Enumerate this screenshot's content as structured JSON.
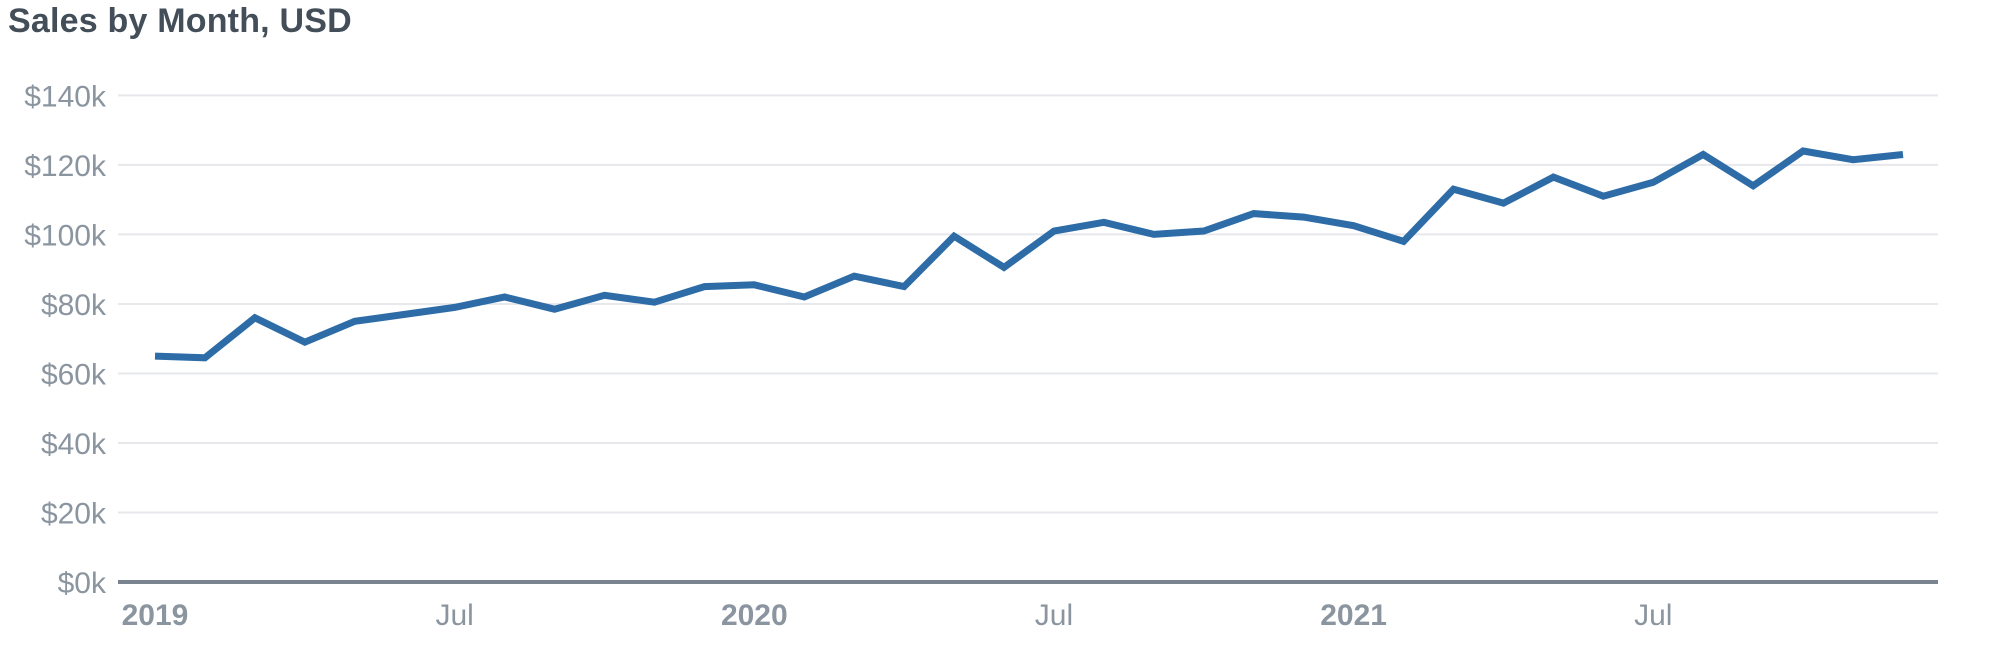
{
  "title": "Sales by Month, USD",
  "colors": {
    "line": "#2d6ca7",
    "title_text": "#434e59",
    "axis_text": "#8b95a0",
    "gridline": "#e6e8ec",
    "baseline": "#79848f",
    "background": "#ffffff"
  },
  "chart_data": {
    "type": "line",
    "title": "Sales by Month, USD",
    "ylabel": "USD",
    "xlabel": "",
    "ylim": [
      0,
      140
    ],
    "grid": "horizontal",
    "legend": "none",
    "unit": "USD thousands",
    "x": [
      "Jan 2019",
      "Feb 2019",
      "Mar 2019",
      "Apr 2019",
      "May 2019",
      "Jun 2019",
      "Jul 2019",
      "Aug 2019",
      "Sep 2019",
      "Oct 2019",
      "Nov 2019",
      "Dec 2019",
      "Jan 2020",
      "Feb 2020",
      "Mar 2020",
      "Apr 2020",
      "May 2020",
      "Jun 2020",
      "Jul 2020",
      "Aug 2020",
      "Sep 2020",
      "Oct 2020",
      "Nov 2020",
      "Dec 2020",
      "Jan 2021",
      "Feb 2021",
      "Mar 2021",
      "Apr 2021",
      "May 2021",
      "Jun 2021",
      "Jul 2021",
      "Aug 2021",
      "Sep 2021",
      "Oct 2021",
      "Nov 2021",
      "Dec 2021"
    ],
    "values": [
      65,
      64.5,
      76,
      69,
      75,
      77,
      79,
      82,
      78.5,
      82.5,
      80.5,
      85,
      85.5,
      82,
      88,
      85,
      99.5,
      90.5,
      101,
      103.5,
      100,
      101,
      106,
      105,
      102.5,
      98,
      113,
      109,
      116.5,
      111,
      115,
      123,
      114,
      124,
      121.5,
      123
    ],
    "y_ticks": [
      {
        "value": 0,
        "label": "$0k"
      },
      {
        "value": 20,
        "label": "$20k"
      },
      {
        "value": 40,
        "label": "$40k"
      },
      {
        "value": 60,
        "label": "$60k"
      },
      {
        "value": 80,
        "label": "$80k"
      },
      {
        "value": 100,
        "label": "$100k"
      },
      {
        "value": 120,
        "label": "$120k"
      },
      {
        "value": 140,
        "label": "$140k"
      }
    ],
    "x_ticks": [
      {
        "month_index": 0,
        "label": "2019",
        "bold": true
      },
      {
        "month_index": 6,
        "label": "Jul",
        "bold": false
      },
      {
        "month_index": 12,
        "label": "2020",
        "bold": true
      },
      {
        "month_index": 18,
        "label": "Jul",
        "bold": false
      },
      {
        "month_index": 24,
        "label": "2021",
        "bold": true
      },
      {
        "month_index": 30,
        "label": "Jul",
        "bold": false
      }
    ]
  }
}
